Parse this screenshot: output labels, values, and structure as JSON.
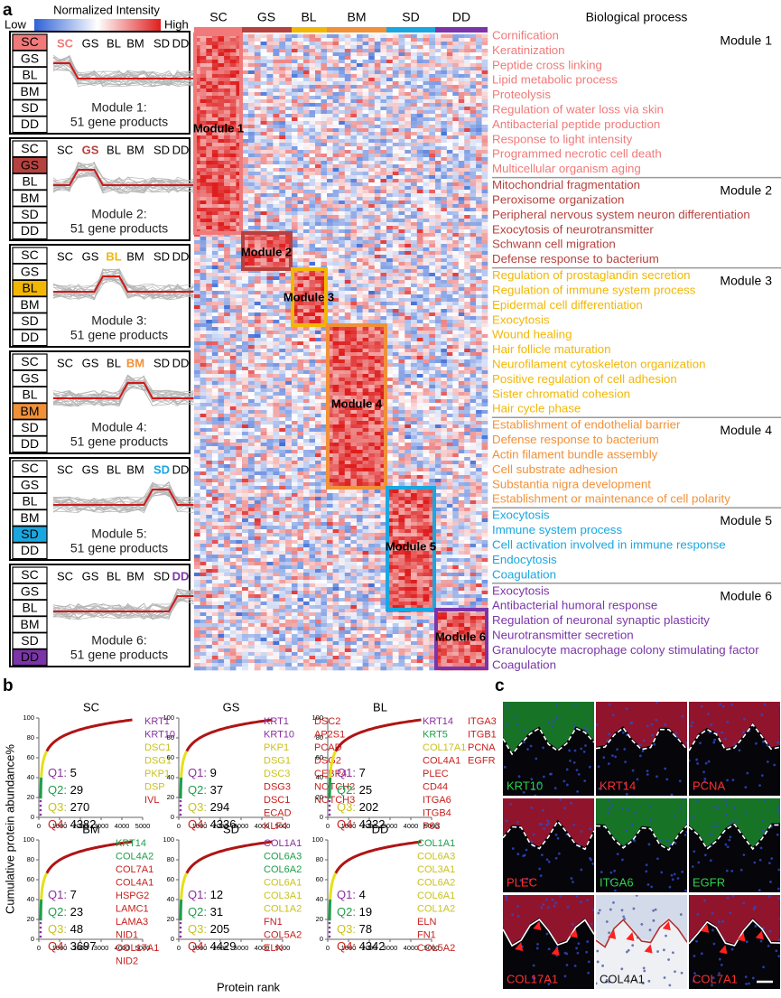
{
  "panel_a": {
    "label": "a",
    "legend": {
      "title": "Normalized Intensity",
      "low": "Low",
      "high": "High"
    },
    "columns": [
      "SC",
      "GS",
      "BL",
      "BM",
      "SD",
      "DD"
    ],
    "process_header": "Biological process",
    "modules": [
      {
        "name": "Module 1",
        "caption": "Module 1:",
        "size": "51 gene products",
        "color": "#f07a7a",
        "processes": [
          "Cornification",
          "Keratinization",
          "Peptide cross linking",
          "Lipid metabolic process",
          "Proteolysis",
          "Regulation of water loss via skin",
          "Antibacterial peptide production",
          "Response to light intensity",
          "Programmed necrotic cell death",
          "Multicellular organism aging"
        ]
      },
      {
        "name": "Module 2",
        "caption": "Module 2:",
        "size": "51 gene products",
        "color": "#b5423f",
        "processes": [
          "Mitochondrial fragmentation",
          "Peroxisome organization",
          "Peripheral nervous system neuron differentiation",
          "Exocytosis of neurotransmitter",
          "Schwann cell migration",
          "Defense response to bacterium"
        ]
      },
      {
        "name": "Module 3",
        "caption": "Module 3:",
        "size": "51 gene products",
        "color": "#f2b705",
        "processes": [
          "Regulation of prostaglandin secretion",
          "Regulation of immune system process",
          "Epidermal cell differentiation",
          "Exocytosis",
          "Wound healing",
          "Hair follicle maturation",
          "Neurofilament cytoskeleton organization",
          "Positive regulation of cell adhesion",
          "Sister chromatid cohesion",
          "Hair cycle phase"
        ]
      },
      {
        "name": "Module 4",
        "caption": "Module 4:",
        "size": "51 gene products",
        "color": "#f0913a",
        "processes": [
          "Establishment of endothelial barrier",
          "Defense response to bacterium",
          "Actin filament bundle assembly",
          "Cell substrate adhesion",
          "Substantia nigra development",
          "Establishment or maintenance of cell polarity"
        ]
      },
      {
        "name": "Module 5",
        "caption": "Module 5:",
        "size": "51 gene products",
        "color": "#1aa7e0",
        "processes": [
          "Exocytosis",
          "Immune system process",
          "Cell activation involved in immune response",
          "Endocytosis",
          "Coagulation"
        ]
      },
      {
        "name": "Module 6",
        "caption": "Module 6:",
        "size": "51 gene products",
        "color": "#7b35a8",
        "processes": [
          "Exocytosis",
          "Antibacterial humoral response",
          "Regulation of neuronal synaptic plasticity",
          "Neurotransmitter secretion",
          "Granulocyte macrophage colony stimulating factor",
          "Coagulation"
        ]
      }
    ]
  },
  "panel_b": {
    "label": "b",
    "y_label": "Cumulative protein abundance%",
    "x_label": "Protein rank",
    "xlim": [
      0,
      5000
    ],
    "ylim": [
      0,
      100
    ],
    "xticks": [
      0,
      1000,
      2000,
      3000,
      4000,
      5000
    ],
    "yticks": [
      0,
      20,
      40,
      60,
      80,
      100
    ],
    "charts": [
      {
        "title": "SC",
        "quartiles": [
          {
            "label": "Q1:",
            "value": 5,
            "color": "#8b2fa0"
          },
          {
            "label": "Q2:",
            "value": 29,
            "color": "#1f9e4a"
          },
          {
            "label": "Q3:",
            "value": 270,
            "color": "#c9c21c"
          },
          {
            "label": "Q4:",
            "value": 4382,
            "color": "#c8201e"
          }
        ],
        "gene_columns": [
          [
            {
              "name": "KRT1",
              "color": "#8b2fa0"
            },
            {
              "name": "KRT10",
              "color": "#8b2fa0"
            },
            {
              "name": "DSC1",
              "color": "#c9c21c"
            },
            {
              "name": "DSG1",
              "color": "#c9c21c"
            },
            {
              "name": "PKP1",
              "color": "#c9c21c"
            },
            {
              "name": "DSP",
              "color": "#c9c21c"
            },
            {
              "name": "IVL",
              "color": "#c8201e"
            }
          ]
        ]
      },
      {
        "title": "GS",
        "quartiles": [
          {
            "label": "Q1:",
            "value": 9,
            "color": "#8b2fa0"
          },
          {
            "label": "Q2:",
            "value": 37,
            "color": "#1f9e4a"
          },
          {
            "label": "Q3:",
            "value": 294,
            "color": "#c9c21c"
          },
          {
            "label": "Q4:",
            "value": 4336,
            "color": "#c8201e"
          }
        ],
        "gene_columns": [
          [
            {
              "name": "KRT1",
              "color": "#8b2fa0"
            },
            {
              "name": "KRT10",
              "color": "#8b2fa0"
            },
            {
              "name": "PKP1",
              "color": "#c9c21c"
            },
            {
              "name": "DSG1",
              "color": "#c9c21c"
            },
            {
              "name": "DSC3",
              "color": "#c9c21c"
            },
            {
              "name": "DSG3",
              "color": "#c8201e"
            },
            {
              "name": "DSC1",
              "color": "#c8201e"
            },
            {
              "name": "ECAD",
              "color": "#c8201e"
            },
            {
              "name": "KLF4",
              "color": "#c8201e"
            }
          ],
          [
            {
              "name": "DSC2",
              "color": "#c8201e"
            },
            {
              "name": "AP2S1",
              "color": "#c8201e"
            },
            {
              "name": "PCAD",
              "color": "#c8201e"
            },
            {
              "name": "DSG2",
              "color": "#c8201e"
            },
            {
              "name": "CEBP4",
              "color": "#c8201e"
            },
            {
              "name": "NOTCH2",
              "color": "#c8201e"
            },
            {
              "name": "NOTCH3",
              "color": "#c8201e"
            }
          ]
        ]
      },
      {
        "title": "BL",
        "quartiles": [
          {
            "label": "Q1:",
            "value": 7,
            "color": "#8b2fa0"
          },
          {
            "label": "Q2:",
            "value": 25,
            "color": "#1f9e4a"
          },
          {
            "label": "Q3:",
            "value": 202,
            "color": "#c9c21c"
          },
          {
            "label": "Q4:",
            "value": 4322,
            "color": "#c8201e"
          }
        ],
        "gene_columns": [
          [
            {
              "name": "KRT14",
              "color": "#8b2fa0"
            },
            {
              "name": "KRT5",
              "color": "#1f9e4a"
            },
            {
              "name": "COL17A1",
              "color": "#c9c21c"
            },
            {
              "name": "COL4A1",
              "color": "#c8201e"
            },
            {
              "name": "PLEC",
              "color": "#c8201e"
            },
            {
              "name": "CD44",
              "color": "#c8201e"
            },
            {
              "name": "ITGA6",
              "color": "#c8201e"
            },
            {
              "name": "ITGB4",
              "color": "#c8201e"
            },
            {
              "name": "P63",
              "color": "#c8201e"
            }
          ],
          [
            {
              "name": "ITGA3",
              "color": "#c8201e"
            },
            {
              "name": "ITGB1",
              "color": "#c8201e"
            },
            {
              "name": "PCNA",
              "color": "#c8201e"
            },
            {
              "name": "EGFR",
              "color": "#c8201e"
            }
          ]
        ]
      },
      {
        "title": "BM",
        "quartiles": [
          {
            "label": "Q1:",
            "value": 7,
            "color": "#8b2fa0"
          },
          {
            "label": "Q2:",
            "value": 23,
            "color": "#1f9e4a"
          },
          {
            "label": "Q3:",
            "value": 48,
            "color": "#c9c21c"
          },
          {
            "label": "Q4:",
            "value": 3697,
            "color": "#c8201e"
          }
        ],
        "gene_columns": [
          [
            {
              "name": "KRT14",
              "color": "#1f9e4a"
            },
            {
              "name": "COL4A2",
              "color": "#1f9e4a"
            },
            {
              "name": "COL7A1",
              "color": "#c8201e"
            },
            {
              "name": "COL4A1",
              "color": "#c8201e"
            },
            {
              "name": "HSPG2",
              "color": "#c8201e"
            },
            {
              "name": "LAMC1",
              "color": "#c8201e"
            },
            {
              "name": "LAMA3",
              "color": "#c8201e"
            },
            {
              "name": "NID1",
              "color": "#c8201e"
            },
            {
              "name": "COL17A1",
              "color": "#c8201e"
            },
            {
              "name": "NID2",
              "color": "#c8201e"
            }
          ]
        ]
      },
      {
        "title": "SD",
        "quartiles": [
          {
            "label": "Q1:",
            "value": 12,
            "color": "#8b2fa0"
          },
          {
            "label": "Q2:",
            "value": 31,
            "color": "#1f9e4a"
          },
          {
            "label": "Q3:",
            "value": 205,
            "color": "#c9c21c"
          },
          {
            "label": "Q4:",
            "value": 4429,
            "color": "#c8201e"
          }
        ],
        "gene_columns": [
          [
            {
              "name": "COL1A1",
              "color": "#8b2fa0"
            },
            {
              "name": "COL6A3",
              "color": "#1f9e4a"
            },
            {
              "name": "COL6A2",
              "color": "#1f9e4a"
            },
            {
              "name": "COL6A1",
              "color": "#c9c21c"
            },
            {
              "name": "COL3A1",
              "color": "#c9c21c"
            },
            {
              "name": "COL1A2",
              "color": "#c9c21c"
            },
            {
              "name": "FN1",
              "color": "#c8201e"
            },
            {
              "name": "COL5A2",
              "color": "#c8201e"
            },
            {
              "name": "ELN",
              "color": "#c8201e"
            }
          ]
        ]
      },
      {
        "title": "DD",
        "quartiles": [
          {
            "label": "Q1:",
            "value": 4,
            "color": "#8b2fa0"
          },
          {
            "label": "Q2:",
            "value": 19,
            "color": "#1f9e4a"
          },
          {
            "label": "Q3:",
            "value": 78,
            "color": "#c9c21c"
          },
          {
            "label": "Q4:",
            "value": 4342,
            "color": "#c8201e"
          }
        ],
        "gene_columns": [
          [
            {
              "name": "COL1A1",
              "color": "#1f9e4a"
            },
            {
              "name": "COL6A3",
              "color": "#c9c21c"
            },
            {
              "name": "COL3A1",
              "color": "#c9c21c"
            },
            {
              "name": "COL6A2",
              "color": "#c9c21c"
            },
            {
              "name": "COL6A1",
              "color": "#c9c21c"
            },
            {
              "name": "COL1A2",
              "color": "#c9c21c"
            },
            {
              "name": "ELN",
              "color": "#c8201e"
            },
            {
              "name": "FN1",
              "color": "#c8201e"
            },
            {
              "name": "COL5A2",
              "color": "#c8201e"
            }
          ]
        ]
      }
    ]
  },
  "panel_c": {
    "label": "c",
    "images": [
      {
        "label": "KRT10",
        "color": "#2fd04a"
      },
      {
        "label": "KRT14",
        "color": "#ff3030"
      },
      {
        "label": "PCNA",
        "color": "#ff3030"
      },
      {
        "label": "PLEC",
        "color": "#ff3030"
      },
      {
        "label": "ITGA6",
        "color": "#2fd04a"
      },
      {
        "label": "EGFR",
        "color": "#2fd04a"
      },
      {
        "label": "COL17A1",
        "color": "#ff3030"
      },
      {
        "label": "COL4A1",
        "color": "#111111"
      },
      {
        "label": "COL7A1",
        "color": "#ff3030"
      }
    ]
  }
}
